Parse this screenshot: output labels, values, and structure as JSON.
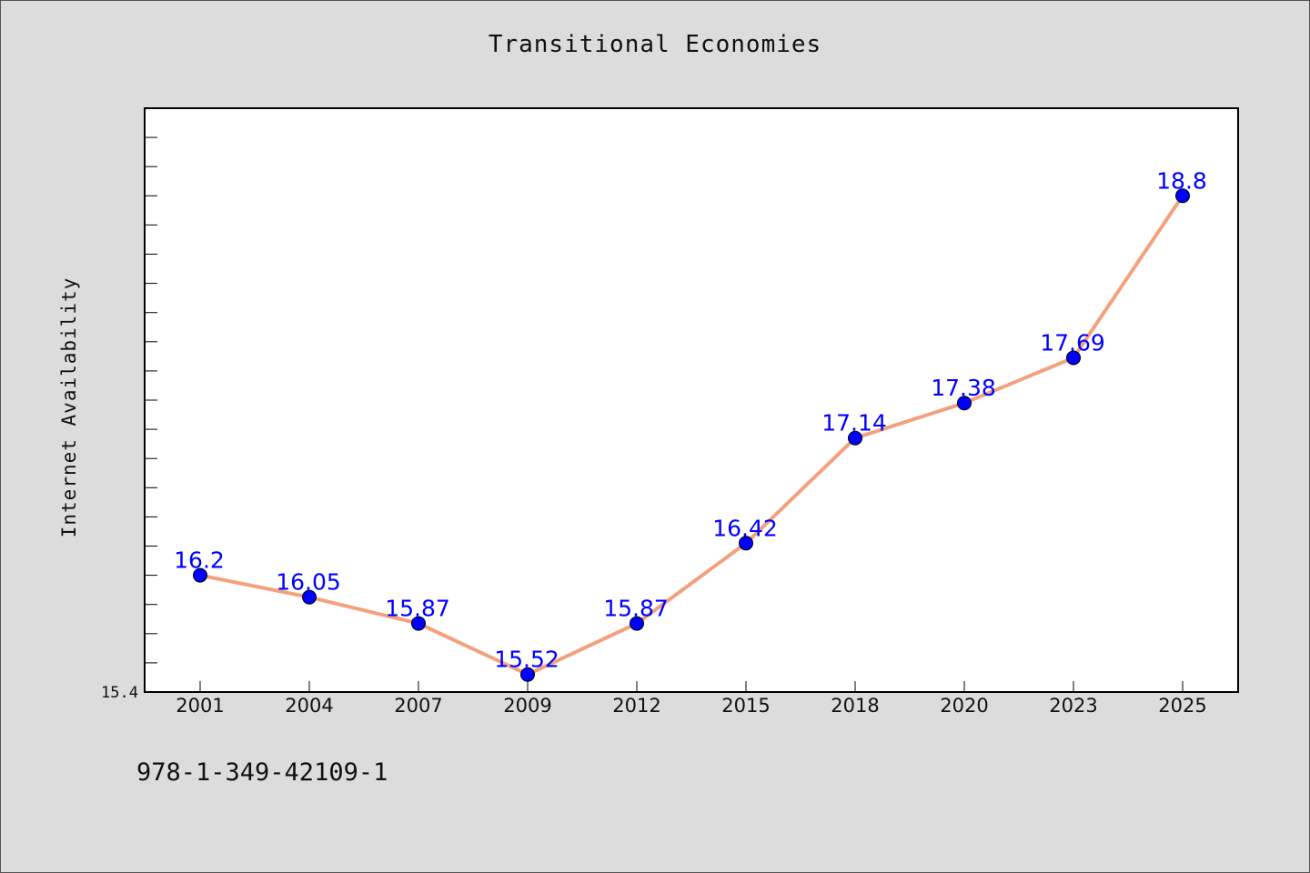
{
  "chart_data": {
    "type": "line",
    "title": "Transitional Economies",
    "ylabel": "Internet Availability",
    "xlabel": "",
    "categories": [
      "2001",
      "2004",
      "2007",
      "2009",
      "2012",
      "2015",
      "2018",
      "2020",
      "2023",
      "2025"
    ],
    "series": [
      {
        "values": [
          16.2,
          16.05,
          15.87,
          15.52,
          15.87,
          16.42,
          17.14,
          17.38,
          17.69,
          18.8
        ]
      }
    ],
    "data_labels": [
      "16.2",
      "16.05",
      "15.87",
      "15.52",
      "15.87",
      "16.42",
      "17.14",
      "17.38",
      "17.69",
      "18.8"
    ],
    "ylim": [
      15.4,
      19.4
    ],
    "ytick_label": "15.4",
    "grid": false,
    "legend": "none",
    "colors": {
      "line": "#f4a07c",
      "marker": "#0000ff",
      "label": "#0000ff"
    }
  },
  "footer": {
    "isbn": "978-1-349-42109-1"
  }
}
